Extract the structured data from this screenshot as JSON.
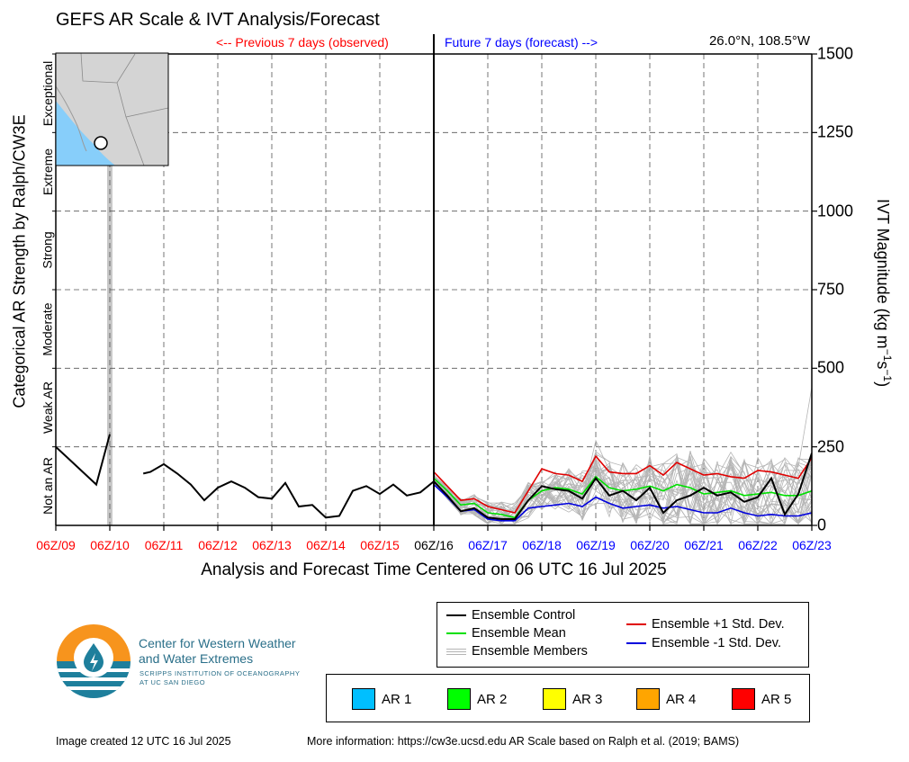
{
  "header": {
    "title": "GEFS AR Scale & IVT Analysis/Forecast",
    "previous_label": "<-- Previous 7 days (observed)",
    "future_label": "Future 7 days (forecast) -->",
    "location": "26.0°N, 108.5°W"
  },
  "colors": {
    "observed_text": "#ff0000",
    "forecast_text": "#0000ff",
    "control": "#000000",
    "mean": "#00e000",
    "plus_sd": "#e00000",
    "minus_sd": "#0000dd",
    "members": "#b5b5b5",
    "map_land": "#d4d4d4",
    "map_water": "#87cefa"
  },
  "footer": {
    "created": "Image created 12 UTC 16 Jul 2025",
    "more_info": "More information: https://cw3e.ucsd.edu AR Scale based on Ralph et al. (2019; BAMS)"
  },
  "logo": {
    "name_line1": "Center for Western Weather",
    "name_line2": "and Water Extremes",
    "sub_line1": "SCRIPPS INSTITUTION OF OCEANOGRAPHY",
    "sub_line2": "AT UC SAN DIEGO"
  },
  "legend": {
    "control": "Ensemble Control",
    "mean": "Ensemble Mean",
    "members": "Ensemble Members",
    "plus_sd": "Ensemble +1 Std. Dev.",
    "minus_sd": "Ensemble -1 Std. Dev."
  },
  "ar_legend": [
    {
      "label": "AR 1",
      "color": "#00bfff"
    },
    {
      "label": "AR 2",
      "color": "#00ff00"
    },
    {
      "label": "AR 3",
      "color": "#ffff00"
    },
    {
      "label": "AR 4",
      "color": "#ffa500"
    },
    {
      "label": "AR 5",
      "color": "#ff0000"
    }
  ],
  "chart_data": {
    "type": "line",
    "title": "GEFS AR Scale & IVT Analysis/Forecast",
    "xlabel": "Analysis and Forecast Time Centered on 06 UTC 16 Jul 2025",
    "ylabel_left": "Categorical AR Strength by Ralph/CW3E",
    "ylabel_right": "IVT Magnitude (kg m",
    "ylabel_right_exp1": "−1",
    "ylabel_right_mid": "s",
    "ylabel_right_exp2": "−1",
    "ylabel_right_end": ")",
    "ylim": [
      0,
      1500
    ],
    "xlim": [
      0,
      14
    ],
    "grid": true,
    "y_ticks": [
      "0",
      "250",
      "500",
      "750",
      "1000",
      "1250",
      "1500"
    ],
    "y_tick_values": [
      0,
      250,
      500,
      750,
      1000,
      1250,
      1500
    ],
    "x_ticks": [
      {
        "label": "06Z/09",
        "day": 0,
        "kind": "observed"
      },
      {
        "label": "06Z/10",
        "day": 1,
        "kind": "observed"
      },
      {
        "label": "06Z/11",
        "day": 2,
        "kind": "observed"
      },
      {
        "label": "06Z/12",
        "day": 3,
        "kind": "observed"
      },
      {
        "label": "06Z/13",
        "day": 4,
        "kind": "observed"
      },
      {
        "label": "06Z/14",
        "day": 5,
        "kind": "observed"
      },
      {
        "label": "06Z/15",
        "day": 6,
        "kind": "observed"
      },
      {
        "label": "06Z/16",
        "day": 7,
        "kind": "now"
      },
      {
        "label": "06Z/17",
        "day": 8,
        "kind": "forecast"
      },
      {
        "label": "06Z/18",
        "day": 9,
        "kind": "forecast"
      },
      {
        "label": "06Z/19",
        "day": 10,
        "kind": "forecast"
      },
      {
        "label": "06Z/20",
        "day": 11,
        "kind": "forecast"
      },
      {
        "label": "06Z/21",
        "day": 12,
        "kind": "forecast"
      },
      {
        "label": "06Z/22",
        "day": 13,
        "kind": "forecast"
      },
      {
        "label": "06Z/23",
        "day": 14,
        "kind": "forecast"
      }
    ],
    "categories": [
      {
        "label": "Not an AR",
        "low": 0,
        "high": 250
      },
      {
        "label": "Weak AR",
        "low": 250,
        "high": 500
      },
      {
        "label": "Moderate",
        "low": 500,
        "high": 750
      },
      {
        "label": "Strong",
        "low": 750,
        "high": 1000
      },
      {
        "label": "Extreme",
        "low": 1000,
        "high": 1250
      },
      {
        "label": "Exceptional",
        "low": 1250,
        "high": 1500
      }
    ],
    "missing_data_day": 1.0,
    "observed": [
      [
        [
          0.0,
          250
        ],
        [
          0.25,
          210
        ],
        [
          0.5,
          170
        ],
        [
          0.75,
          130
        ],
        [
          1.0,
          290
        ]
      ],
      [
        [
          1.62,
          165
        ],
        [
          1.75,
          170
        ],
        [
          2.0,
          195
        ],
        [
          2.25,
          165
        ],
        [
          2.5,
          130
        ],
        [
          2.75,
          80
        ],
        [
          3.0,
          120
        ],
        [
          3.25,
          140
        ],
        [
          3.5,
          120
        ],
        [
          3.75,
          90
        ],
        [
          4.0,
          85
        ],
        [
          4.25,
          135
        ],
        [
          4.5,
          60
        ],
        [
          4.75,
          65
        ],
        [
          5.0,
          25
        ],
        [
          5.25,
          30
        ],
        [
          5.5,
          110
        ],
        [
          5.75,
          125
        ],
        [
          6.0,
          100
        ],
        [
          6.25,
          130
        ],
        [
          6.5,
          95
        ],
        [
          6.75,
          105
        ],
        [
          7.0,
          140
        ]
      ]
    ],
    "series": [
      {
        "name": "Ensemble Control",
        "color": "#000000",
        "points": [
          [
            7.0,
            140
          ],
          [
            7.25,
            95
          ],
          [
            7.5,
            45
          ],
          [
            7.75,
            55
          ],
          [
            8.0,
            25
          ],
          [
            8.25,
            20
          ],
          [
            8.5,
            20
          ],
          [
            8.75,
            80
          ],
          [
            9.0,
            125
          ],
          [
            9.25,
            115
          ],
          [
            9.5,
            110
          ],
          [
            9.75,
            85
          ],
          [
            10.0,
            150
          ],
          [
            10.25,
            95
          ],
          [
            10.5,
            110
          ],
          [
            10.75,
            80
          ],
          [
            11.0,
            120
          ],
          [
            11.25,
            40
          ],
          [
            11.5,
            80
          ],
          [
            11.75,
            95
          ],
          [
            12.0,
            120
          ],
          [
            12.25,
            95
          ],
          [
            12.5,
            105
          ],
          [
            12.75,
            75
          ],
          [
            13.0,
            90
          ],
          [
            13.25,
            150
          ],
          [
            13.5,
            35
          ],
          [
            13.75,
            100
          ],
          [
            14.0,
            230
          ]
        ]
      },
      {
        "name": "Ensemble Mean",
        "color": "#00e000",
        "points": [
          [
            7.0,
            150
          ],
          [
            7.25,
            110
          ],
          [
            7.5,
            65
          ],
          [
            7.75,
            70
          ],
          [
            8.0,
            40
          ],
          [
            8.25,
            35
          ],
          [
            8.5,
            25
          ],
          [
            8.75,
            80
          ],
          [
            9.0,
            110
          ],
          [
            9.25,
            120
          ],
          [
            9.5,
            115
          ],
          [
            9.75,
            100
          ],
          [
            10.0,
            155
          ],
          [
            10.25,
            120
          ],
          [
            10.5,
            110
          ],
          [
            10.75,
            115
          ],
          [
            11.0,
            125
          ],
          [
            11.25,
            110
          ],
          [
            11.5,
            130
          ],
          [
            11.75,
            120
          ],
          [
            12.0,
            100
          ],
          [
            12.25,
            105
          ],
          [
            12.5,
            110
          ],
          [
            12.75,
            95
          ],
          [
            13.0,
            100
          ],
          [
            13.25,
            105
          ],
          [
            13.5,
            95
          ],
          [
            13.75,
            95
          ],
          [
            14.0,
            110
          ]
        ]
      },
      {
        "name": "Ensemble +1 Std. Dev.",
        "color": "#e00000",
        "points": [
          [
            7.0,
            170
          ],
          [
            7.25,
            125
          ],
          [
            7.5,
            80
          ],
          [
            7.75,
            85
          ],
          [
            8.0,
            60
          ],
          [
            8.25,
            50
          ],
          [
            8.5,
            40
          ],
          [
            8.75,
            110
          ],
          [
            9.0,
            180
          ],
          [
            9.25,
            165
          ],
          [
            9.5,
            160
          ],
          [
            9.75,
            140
          ],
          [
            10.0,
            220
          ],
          [
            10.25,
            170
          ],
          [
            10.5,
            165
          ],
          [
            10.75,
            165
          ],
          [
            11.0,
            190
          ],
          [
            11.25,
            160
          ],
          [
            11.5,
            200
          ],
          [
            11.75,
            180
          ],
          [
            12.0,
            160
          ],
          [
            12.25,
            165
          ],
          [
            12.5,
            155
          ],
          [
            12.75,
            150
          ],
          [
            13.0,
            175
          ],
          [
            13.25,
            170
          ],
          [
            13.5,
            160
          ],
          [
            13.75,
            150
          ],
          [
            14.0,
            215
          ]
        ]
      },
      {
        "name": "Ensemble -1 Std. Dev.",
        "color": "#0000dd",
        "points": [
          [
            7.0,
            130
          ],
          [
            7.25,
            90
          ],
          [
            7.5,
            45
          ],
          [
            7.75,
            50
          ],
          [
            8.0,
            20
          ],
          [
            8.25,
            15
          ],
          [
            8.5,
            15
          ],
          [
            8.75,
            55
          ],
          [
            9.0,
            60
          ],
          [
            9.25,
            65
          ],
          [
            9.5,
            70
          ],
          [
            9.75,
            60
          ],
          [
            10.0,
            90
          ],
          [
            10.25,
            70
          ],
          [
            10.5,
            55
          ],
          [
            10.75,
            60
          ],
          [
            11.0,
            65
          ],
          [
            11.25,
            55
          ],
          [
            11.5,
            60
          ],
          [
            11.75,
            50
          ],
          [
            12.0,
            40
          ],
          [
            12.25,
            40
          ],
          [
            12.5,
            55
          ],
          [
            12.75,
            40
          ],
          [
            13.0,
            30
          ],
          [
            13.25,
            35
          ],
          [
            13.5,
            30
          ],
          [
            13.75,
            30
          ],
          [
            14.0,
            40
          ]
        ]
      }
    ],
    "members_base": [
      150,
      105,
      60,
      65,
      35,
      30,
      25,
      80,
      110,
      115,
      110,
      95,
      150,
      115,
      105,
      105,
      120,
      100,
      125,
      110,
      95,
      100,
      105,
      90,
      95,
      100,
      90,
      90,
      110
    ],
    "members_start_day": 7.0,
    "members_step": 0.25,
    "members_count": 30,
    "members_max_dev": 130
  }
}
